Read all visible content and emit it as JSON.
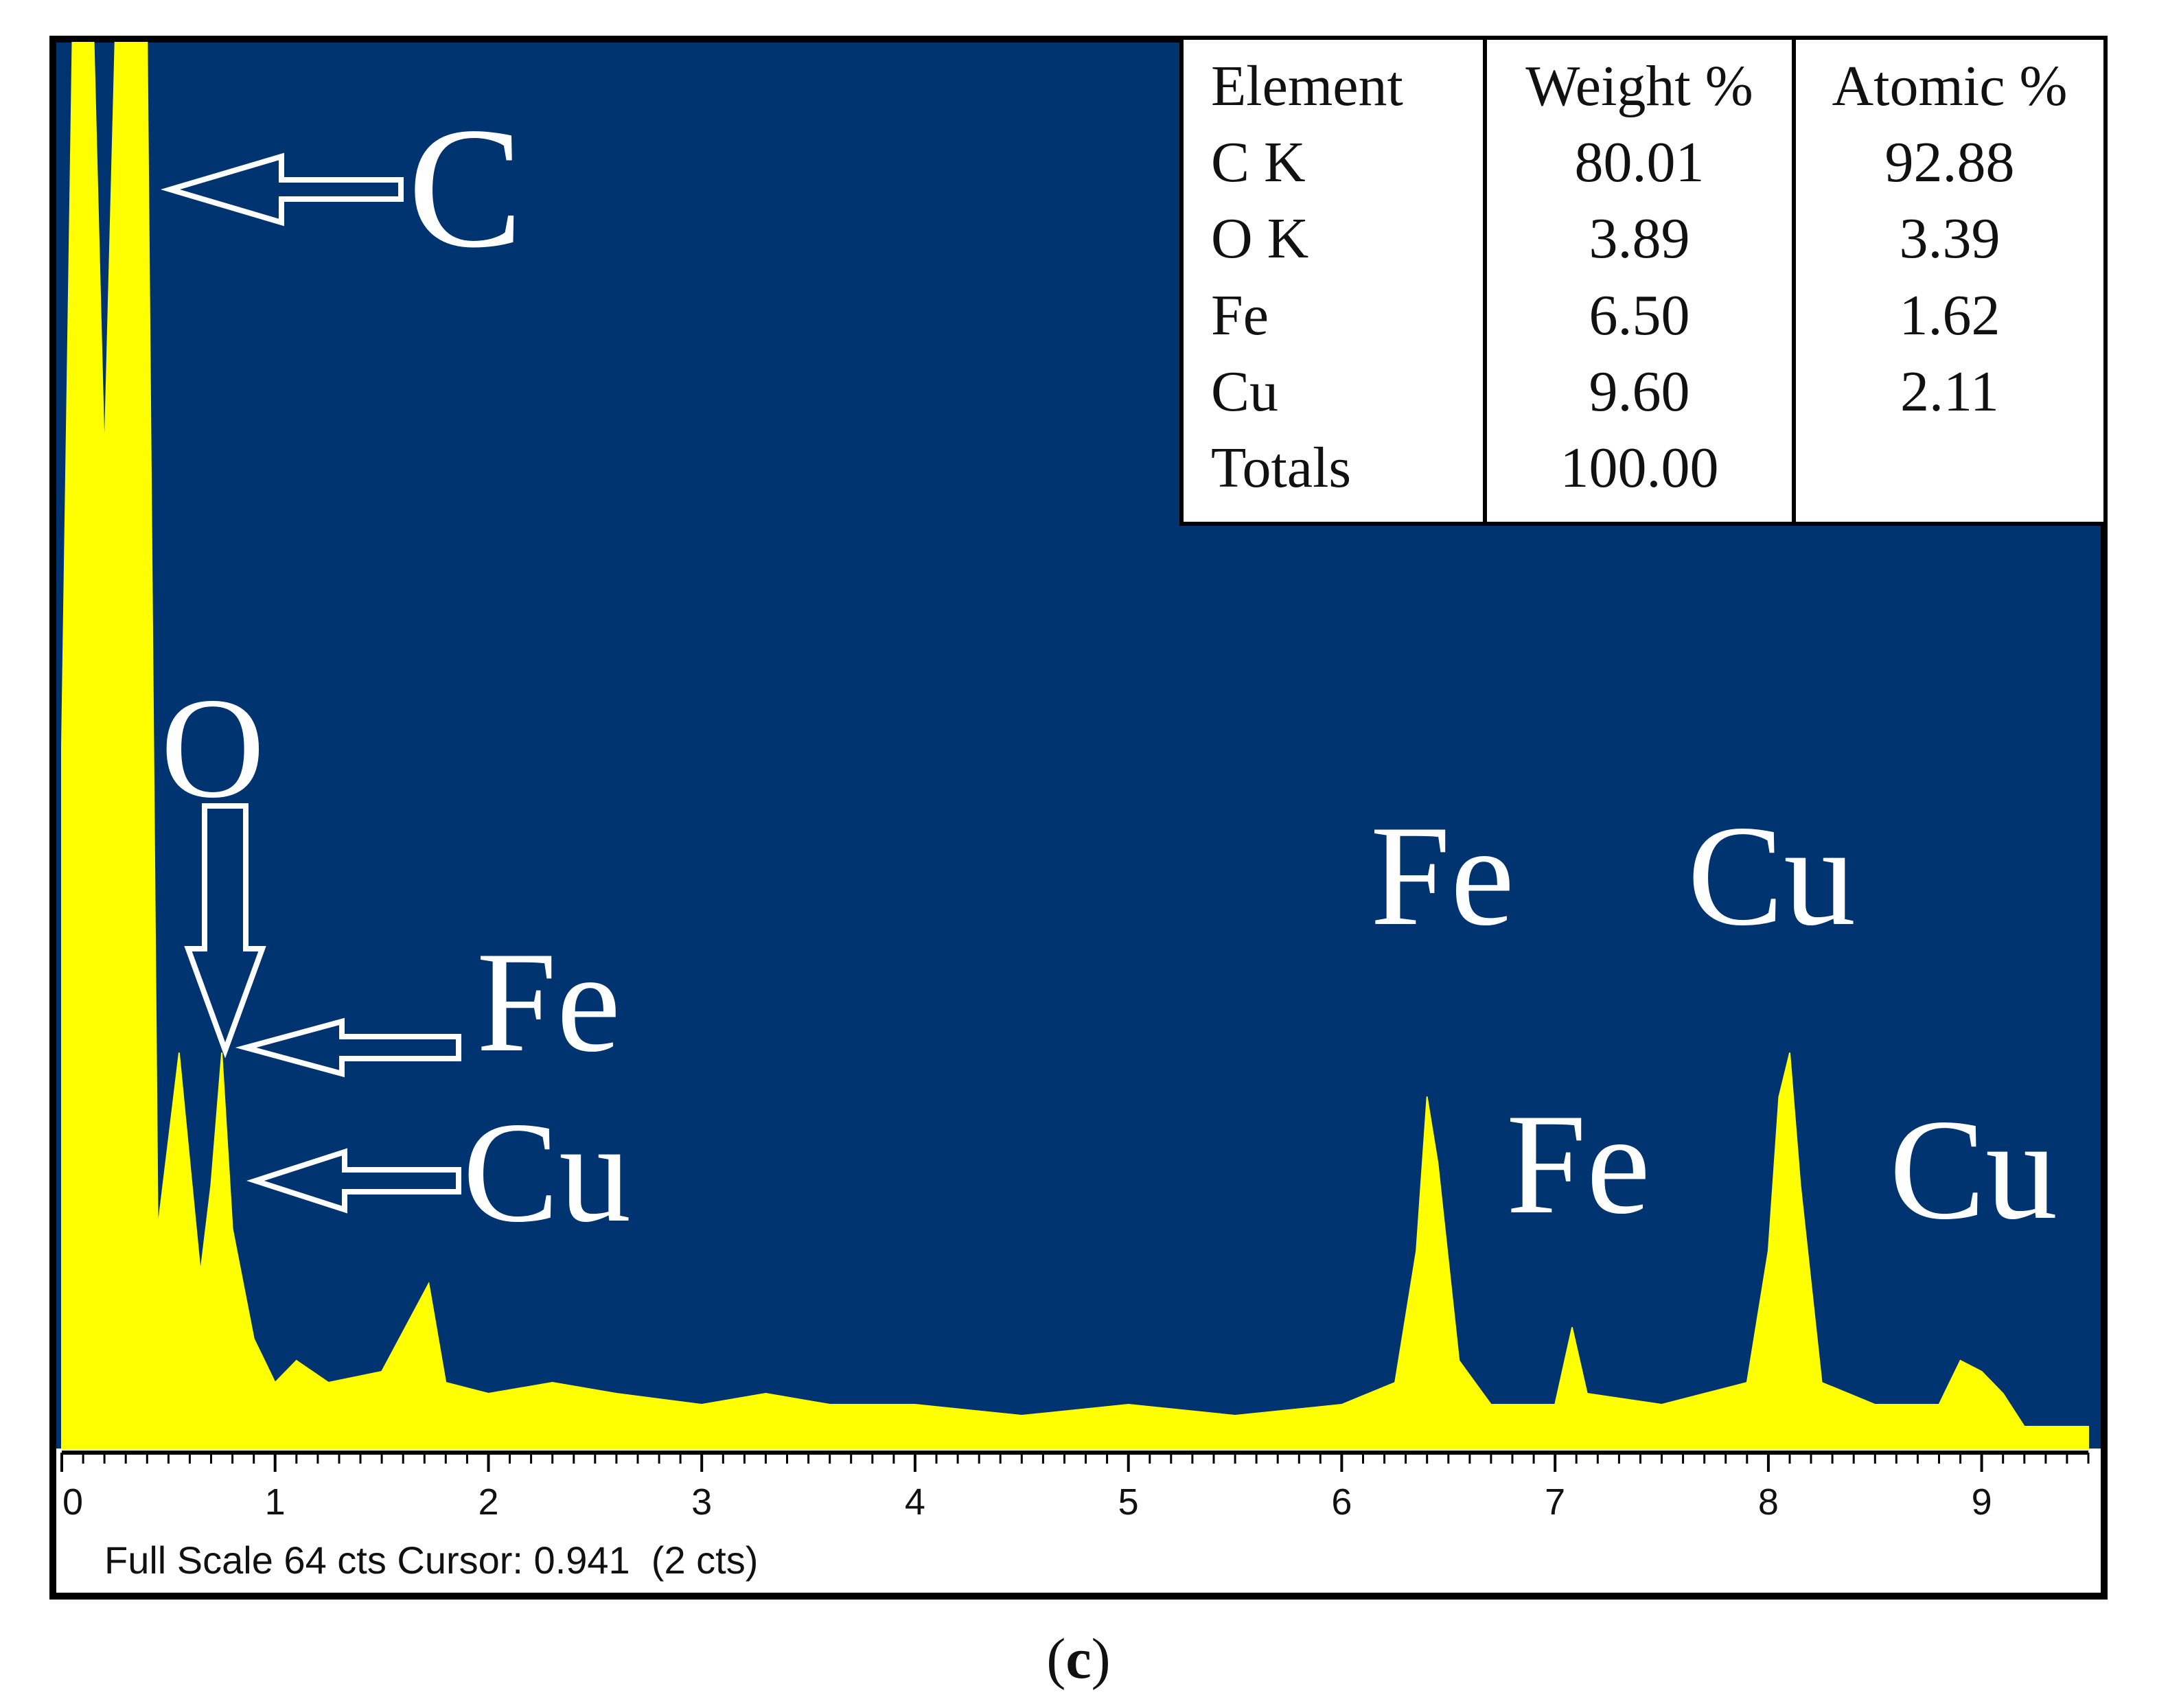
{
  "chart_data": {
    "type": "area",
    "title": "",
    "xlabel": "",
    "ylabel": "",
    "xlim": [
      0,
      9.5
    ],
    "ylim": [
      0,
      64
    ],
    "grid": false,
    "x_ticks": [
      "0",
      "1",
      "2",
      "3",
      "4",
      "5",
      "6",
      "7",
      "8",
      "9"
    ],
    "series": [
      {
        "points": [
          [
            0.0,
            32
          ],
          [
            0.05,
            64
          ],
          [
            0.15,
            64
          ],
          [
            0.2,
            45
          ],
          [
            0.25,
            64
          ],
          [
            0.4,
            64
          ],
          [
            0.45,
            10
          ],
          [
            0.5,
            14
          ],
          [
            0.55,
            18
          ],
          [
            0.6,
            13
          ],
          [
            0.65,
            8
          ],
          [
            0.7,
            12
          ],
          [
            0.75,
            18
          ],
          [
            0.8,
            10
          ],
          [
            0.9,
            5
          ],
          [
            1.0,
            3
          ],
          [
            1.1,
            4
          ],
          [
            1.25,
            3
          ],
          [
            1.5,
            3.5
          ],
          [
            1.72,
            7.5
          ],
          [
            1.8,
            3
          ],
          [
            2.0,
            2.5
          ],
          [
            2.3,
            3
          ],
          [
            2.6,
            2.5
          ],
          [
            3.0,
            2
          ],
          [
            3.3,
            2.5
          ],
          [
            3.6,
            2
          ],
          [
            4.0,
            2
          ],
          [
            4.5,
            1.5
          ],
          [
            5.0,
            2
          ],
          [
            5.5,
            1.5
          ],
          [
            6.0,
            2
          ],
          [
            6.25,
            3
          ],
          [
            6.35,
            9
          ],
          [
            6.4,
            16
          ],
          [
            6.45,
            13
          ],
          [
            6.55,
            4
          ],
          [
            6.7,
            2
          ],
          [
            7.0,
            2
          ],
          [
            7.08,
            5.5
          ],
          [
            7.15,
            2.5
          ],
          [
            7.5,
            2
          ],
          [
            7.9,
            3
          ],
          [
            8.0,
            9
          ],
          [
            8.05,
            16
          ],
          [
            8.1,
            18
          ],
          [
            8.15,
            12
          ],
          [
            8.25,
            3
          ],
          [
            8.5,
            2
          ],
          [
            8.8,
            2
          ],
          [
            8.9,
            4
          ],
          [
            9.0,
            3.5
          ],
          [
            9.1,
            2.5
          ],
          [
            9.2,
            1
          ],
          [
            9.5,
            1
          ]
        ]
      }
    ],
    "colors": {
      "plot_background": "#003471",
      "spectrum": "#ffff00",
      "frame": "#000000"
    }
  },
  "labels": {
    "c": "C",
    "o": "O",
    "fe_low": "Fe",
    "cu_low": "Cu",
    "fe_ka": "Fe",
    "fe_kb": "Fe",
    "cu_ka": "Cu",
    "cu_kb": "Cu"
  },
  "table": {
    "headers": [
      "Element",
      "Weight %",
      "Atomic %"
    ],
    "rows": [
      [
        "C K",
        "80.01",
        "92.88"
      ],
      [
        "O K",
        "3.89",
        "3.39"
      ],
      [
        "Fe",
        "6.50",
        "1.62"
      ],
      [
        "Cu",
        "9.60",
        "2.11"
      ],
      [
        "Totals",
        "100.00",
        ""
      ]
    ]
  },
  "status": "Full Scale 64 cts Cursor: 0.941  (2 cts)",
  "panel": {
    "open": "(",
    "letter": "c",
    "close": ")"
  }
}
